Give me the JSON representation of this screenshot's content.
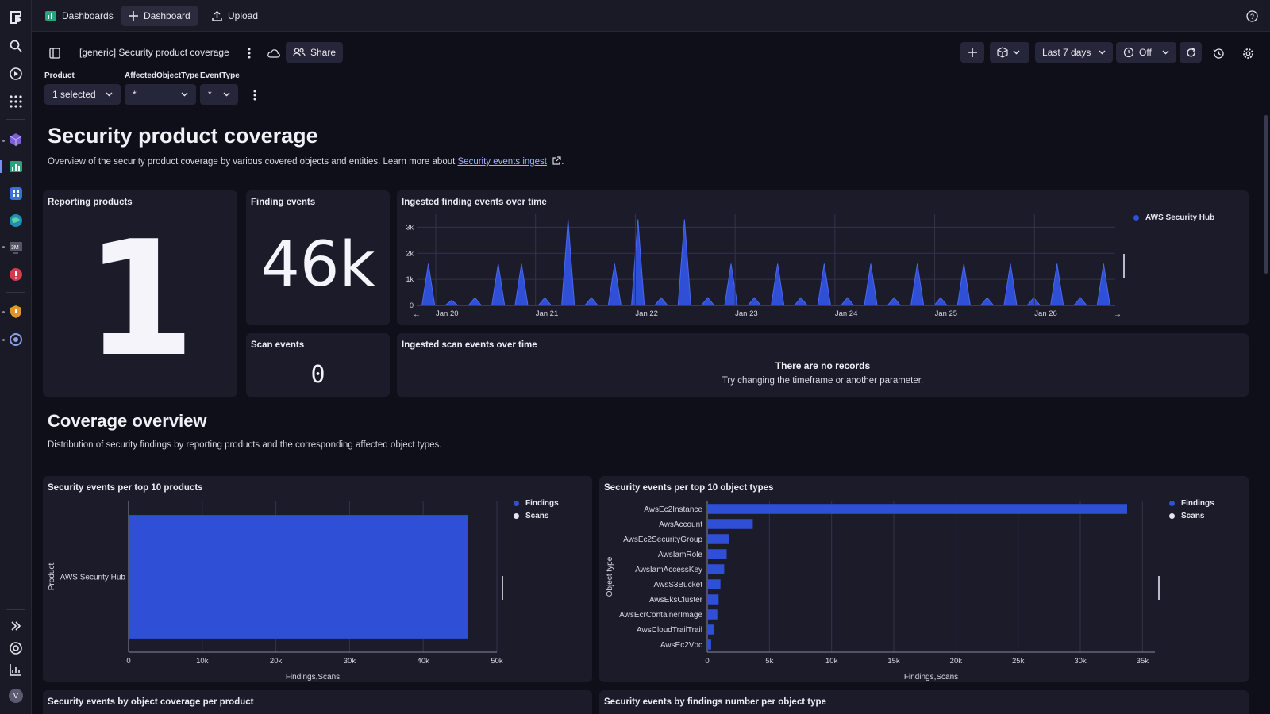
{
  "colors": {
    "series": "#2f4fd6",
    "scans": "#e6e6ee",
    "avatar": "#5a5a70"
  },
  "rail": {
    "icons": [
      "logo-icon",
      "search-icon",
      "run-icon",
      "apps-icon",
      "cube-app-icon",
      "dashboards-app-icon",
      "app-icon",
      "globe-app-icon",
      "monitor-app-icon",
      "alert-app-icon",
      "shield-app-icon",
      "security-app-icon",
      "expand-icon",
      "help-icon",
      "reports-icon"
    ],
    "avatar_letter": "V"
  },
  "topbar": {
    "tabs": [
      {
        "label": "Dashboards",
        "icon": "dashboards-icon"
      },
      {
        "label": "Dashboard",
        "icon": "plus-icon",
        "active": true
      },
      {
        "label": "Upload",
        "icon": "upload-icon"
      }
    ]
  },
  "header": {
    "title": "[generic] Security product coverage",
    "share_label": "Share",
    "timeframe": "Last 7 days",
    "refresh_label": "Off"
  },
  "variables": [
    {
      "label": "Product",
      "value": "1 selected"
    },
    {
      "label": "AffectedObjectType",
      "value": "*"
    },
    {
      "label": "EventType",
      "value": "*"
    }
  ],
  "section1": {
    "title": "Security product coverage",
    "desc": "Overview of the security product coverage by various covered objects and entities. Learn more about ",
    "link": "Security events ingest",
    "desc_end": "."
  },
  "tiles": {
    "reporting_products": {
      "title": "Reporting products",
      "value": "1"
    },
    "finding_events": {
      "title": "Finding events",
      "value": "46k"
    },
    "scan_events": {
      "title": "Scan events",
      "value": "0"
    },
    "finding_over_time": {
      "title": "Ingested finding events over time",
      "legend": "AWS Security Hub"
    },
    "scan_over_time": {
      "title": "Ingested scan events over time",
      "empty_title": "There are no records",
      "empty_hint": "Try changing the timeframe or another parameter."
    },
    "per_products": {
      "title": "Security events per top 10 products"
    },
    "per_object_types": {
      "title": "Security events per top 10 object types"
    },
    "coverage_per_product": {
      "title": "Security events by object coverage per product"
    },
    "findings_per_object": {
      "title": "Security events by findings number per object type"
    }
  },
  "section2": {
    "title": "Coverage overview",
    "desc": "Distribution of security findings by reporting products and the corresponding affected object types."
  },
  "chart_data": [
    {
      "type": "area",
      "x": [
        "Jan 19 12:00",
        "Jan 19 18:00",
        "Jan 20 00:00",
        "Jan 20 06:00",
        "Jan 20 12:00",
        "Jan 20 18:00",
        "Jan 21 00:00",
        "Jan 21 06:00",
        "Jan 21 12:00",
        "Jan 21 18:00",
        "Jan 22 00:00",
        "Jan 22 06:00",
        "Jan 22 12:00",
        "Jan 22 18:00",
        "Jan 23 00:00",
        "Jan 23 06:00",
        "Jan 23 12:00",
        "Jan 23 18:00",
        "Jan 24 00:00",
        "Jan 24 06:00",
        "Jan 24 12:00",
        "Jan 24 18:00",
        "Jan 25 00:00",
        "Jan 25 06:00",
        "Jan 25 12:00",
        "Jan 25 18:00",
        "Jan 26 00:00",
        "Jan 26 06:00",
        "Jan 26 12:00",
        "Jan 26 18:00"
      ],
      "series": [
        {
          "name": "AWS Security Hub",
          "values": [
            1600,
            200,
            300,
            1600,
            1600,
            300,
            3300,
            300,
            1600,
            3300,
            300,
            3300,
            300,
            1600,
            300,
            1600,
            300,
            1600,
            300,
            1600,
            300,
            1600,
            300,
            1600,
            300,
            1600,
            300,
            1600,
            300,
            1600
          ]
        }
      ],
      "x_ticks": [
        "Jan 20",
        "Jan 21",
        "Jan 22",
        "Jan 23",
        "Jan 24",
        "Jan 25",
        "Jan 26"
      ],
      "y_ticks": [
        "0",
        "1k",
        "2k",
        "3k"
      ],
      "ylim": [
        0,
        3500
      ],
      "legend_position": "top-right"
    },
    {
      "type": "bar",
      "orientation": "horizontal",
      "categories": [
        "AWS Security Hub"
      ],
      "series": [
        {
          "name": "Findings",
          "values": [
            46000
          ]
        },
        {
          "name": "Scans",
          "values": [
            0
          ]
        }
      ],
      "xlabel": "Findings,Scans",
      "ylabel": "Product",
      "x_ticks": [
        "0",
        "10k",
        "20k",
        "30k",
        "40k",
        "50k"
      ],
      "xlim": [
        0,
        50000
      ],
      "legend_position": "top-right"
    },
    {
      "type": "bar",
      "orientation": "horizontal",
      "categories": [
        "AwsEc2Instance",
        "AwsAccount",
        "AwsEc2SecurityGroup",
        "AwsIamRole",
        "AwsIamAccessKey",
        "AwsS3Bucket",
        "AwsEksCluster",
        "AwsEcrContainerImage",
        "AwsCloudTrailTrail",
        "AwsEc2Vpc"
      ],
      "series": [
        {
          "name": "Findings",
          "values": [
            33700,
            3600,
            1700,
            1500,
            1300,
            1000,
            850,
            750,
            450,
            250
          ]
        },
        {
          "name": "Scans",
          "values": [
            0,
            0,
            0,
            0,
            0,
            0,
            0,
            0,
            0,
            0
          ]
        }
      ],
      "xlabel": "Findings,Scans",
      "ylabel": "Object type",
      "x_ticks": [
        "0",
        "5k",
        "10k",
        "15k",
        "20k",
        "25k",
        "30k",
        "35k"
      ],
      "xlim": [
        0,
        36000
      ],
      "legend_position": "top-right"
    }
  ]
}
